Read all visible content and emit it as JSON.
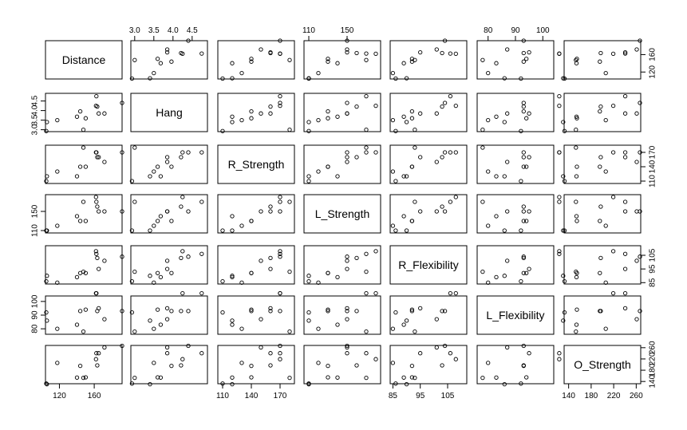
{
  "chart_data": {
    "type": "scatter",
    "subtype": "scatterplot-matrix",
    "variables": [
      "Distance",
      "Hang",
      "R_Strength",
      "L_Strength",
      "R_Flexibility",
      "L_Flexibility",
      "O_Strength"
    ],
    "ranges": [
      [
        104,
        192
      ],
      [
        2.9,
        4.9
      ],
      [
        105,
        185
      ],
      [
        105,
        185
      ],
      [
        84,
        112
      ],
      [
        76,
        104
      ],
      [
        132,
        268
      ]
    ],
    "ticks": [
      [
        120,
        160
      ],
      [
        3.0,
        3.5,
        4.0,
        4.5
      ],
      [
        110,
        140,
        170
      ],
      [
        110,
        150
      ],
      [
        85,
        95,
        105
      ],
      [
        80,
        90,
        100
      ],
      [
        140,
        180,
        220,
        260
      ]
    ],
    "tick_labels": [
      [
        "120",
        "160"
      ],
      [
        "3.0",
        "3.5",
        "4.0",
        "4.5"
      ],
      [
        "110",
        "140",
        "170"
      ],
      [
        "110",
        "150"
      ],
      [
        "85",
        "95",
        "105"
      ],
      [
        "80",
        "90",
        "100"
      ],
      [
        "140",
        "180",
        "220",
        "260"
      ]
    ],
    "tick_sides": [
      "bottom",
      "top",
      "right",
      "left",
      "bottom",
      "top",
      "right",
      "left",
      "bottom",
      "top",
      "right",
      "left",
      "bottom",
      "right"
    ],
    "observations": [
      {
        "Distance": 162.5,
        "Hang": 4.75,
        "R_Strength": 170,
        "L_Strength": 170,
        "R_Flexibility": 106,
        "L_Flexibility": 106,
        "O_Strength": 240.57
      },
      {
        "Distance": 144.0,
        "Hang": 3.96,
        "R_Strength": 140,
        "L_Strength": 130,
        "R_Flexibility": 92,
        "L_Flexibility": 93,
        "O_Strength": 195.49
      },
      {
        "Distance": 147.5,
        "Hang": 3.0,
        "R_Strength": 180,
        "L_Strength": 170,
        "R_Flexibility": 93,
        "L_Flexibility": 78,
        "O_Strength": 152.99
      },
      {
        "Distance": 163.5,
        "Hang": 4.21,
        "R_Strength": 160,
        "L_Strength": 160,
        "R_Flexibility": 103,
        "L_Flexibility": 93,
        "O_Strength": 197.09
      },
      {
        "Distance": 192.0,
        "Hang": 4.4,
        "R_Strength": 170,
        "L_Strength": 150,
        "R_Flexibility": 104,
        "L_Flexibility": 93,
        "O_Strength": 266.56
      },
      {
        "Distance": 171.75,
        "Hang": 3.85,
        "R_Strength": 150,
        "L_Strength": 150,
        "R_Flexibility": 101,
        "L_Flexibility": 87,
        "O_Strength": 260.9
      },
      {
        "Distance": 162.0,
        "Hang": 4.25,
        "R_Strength": 170,
        "L_Strength": 180,
        "R_Flexibility": 108,
        "L_Flexibility": 106,
        "O_Strength": 219.25
      },
      {
        "Distance": 104.93,
        "Hang": 2.93,
        "R_Strength": 110,
        "L_Strength": 110,
        "R_Flexibility": 86,
        "L_Flexibility": 92,
        "O_Strength": 132.68
      },
      {
        "Distance": 105.67,
        "Hang": 3.4,
        "R_Strength": 120,
        "L_Strength": 110,
        "R_Flexibility": 90,
        "L_Flexibility": 86,
        "O_Strength": 130.24
      },
      {
        "Distance": 117.59,
        "Hang": 3.5,
        "R_Strength": 130,
        "L_Strength": 120,
        "R_Flexibility": 85,
        "L_Flexibility": 80,
        "O_Strength": 205.88
      },
      {
        "Distance": 140.25,
        "Hang": 3.68,
        "R_Strength": 120,
        "L_Strength": 140,
        "R_Flexibility": 89,
        "L_Flexibility": 83,
        "O_Strength": 153.92
      },
      {
        "Distance": 150.17,
        "Hang": 3.6,
        "R_Strength": 140,
        "L_Strength": 130,
        "R_Flexibility": 92,
        "L_Flexibility": 94,
        "O_Strength": 154.64
      },
      {
        "Distance": 165.17,
        "Hang": 3.85,
        "R_Strength": 160,
        "L_Strength": 150,
        "R_Flexibility": 95,
        "L_Flexibility": 95,
        "O_Strength": 240.57
      }
    ]
  }
}
